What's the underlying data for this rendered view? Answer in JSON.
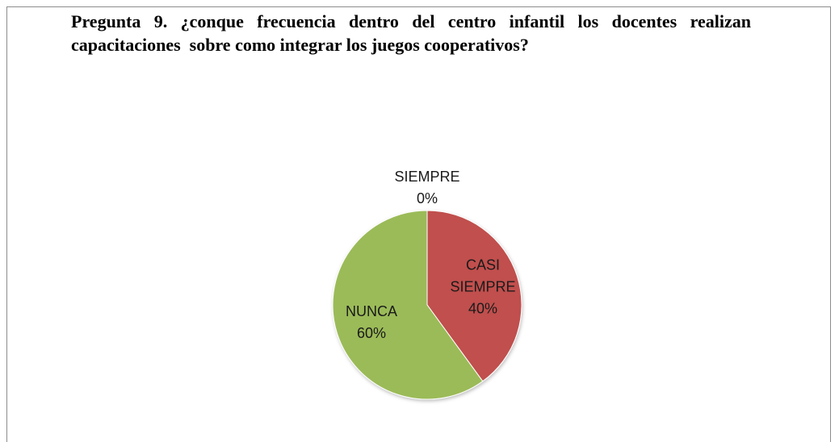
{
  "chart_data": {
    "type": "pie",
    "title": "Pregunta 9. ¿conque frecuencia dentro del centro infantil los docentes realizan capacitaciones  sobre como integrar los juegos cooperativos?",
    "categories": [
      "SIEMPRE",
      "CASI SIEMPRE",
      "NUNCA"
    ],
    "values": [
      0,
      40,
      60
    ],
    "value_labels": [
      "0%",
      "40%",
      "60%"
    ],
    "colors": [
      "#4f81bd",
      "#c0504d",
      "#9bbb59"
    ]
  }
}
